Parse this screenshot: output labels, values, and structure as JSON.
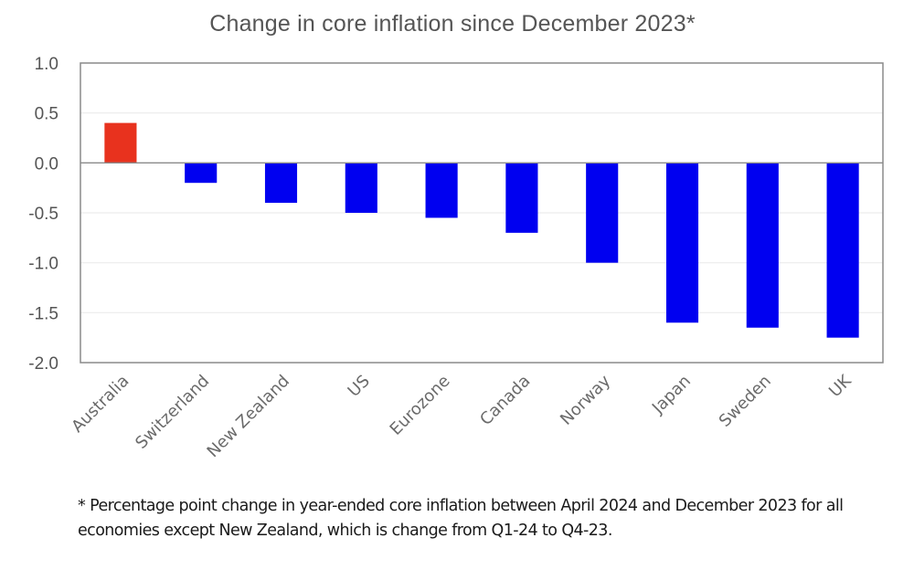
{
  "chart_data": {
    "type": "bar",
    "title": "Change in core inflation since December 2023*",
    "xlabel": "",
    "ylabel": "",
    "categories": [
      "Australia",
      "Switzerland",
      "New Zealand",
      "US",
      "Eurozone",
      "Canada",
      "Norway",
      "Japan",
      "Sweden",
      "UK"
    ],
    "values": [
      0.4,
      -0.2,
      -0.4,
      -0.5,
      -0.55,
      -0.7,
      -1.0,
      -1.6,
      -1.65,
      -1.75
    ],
    "bar_colors": [
      "#e8321e",
      "#0000f0",
      "#0000f0",
      "#0000f0",
      "#0000f0",
      "#0000f0",
      "#0000f0",
      "#0000f0",
      "#0000f0",
      "#0000f0"
    ],
    "highlight_color": "#e8321e",
    "series_color": "#0000f0",
    "ylim": [
      -2.0,
      1.0
    ],
    "yticks": [
      1.0,
      0.5,
      0.0,
      -0.5,
      -1.0,
      -1.5,
      -2.0
    ],
    "ytick_labels": [
      "1.0",
      "0.5",
      "0.0",
      "-0.5",
      "-1.0",
      "-1.5",
      "-2.0"
    ],
    "grid": true,
    "legend": "none",
    "footnote": "* Percentage point change in year-ended core inflation between April 2024 and December 2023 for all economies except New Zealand, which is change from Q1-24 to Q4-23."
  }
}
